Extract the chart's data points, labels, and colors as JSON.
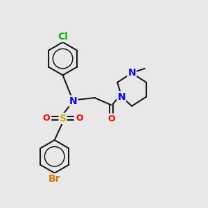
{
  "background_color": "#e8e8e8",
  "figsize": [
    3.0,
    3.0
  ],
  "dpi": 100,
  "atom_colors": {
    "Cl": "#00bb00",
    "N": "#0000ff",
    "O": "#ff0000",
    "S": "#ccaa00",
    "Br": "#cc7700",
    "C": "#1a1a1a",
    "H": "#1a1a1a"
  },
  "bond_color": "#1a1a1a",
  "bond_width": 1.5,
  "font_size": 9,
  "inner_ring_ratio": 0.6
}
